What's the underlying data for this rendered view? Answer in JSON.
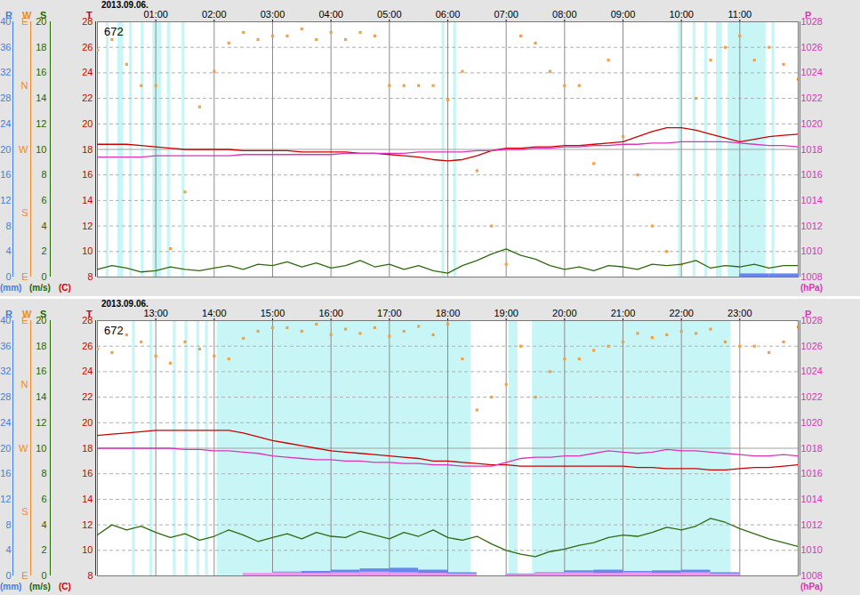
{
  "chart_data": [
    {
      "type": "line",
      "title": "2013.09.06.",
      "annotation": "672",
      "grid": true,
      "xlim": [
        0,
        12
      ],
      "xticks": [
        {
          "value": 1,
          "label": "01:00"
        },
        {
          "value": 2,
          "label": "02:00"
        },
        {
          "value": 3,
          "label": "03:00"
        },
        {
          "value": 4,
          "label": "04:00"
        },
        {
          "value": 5,
          "label": "05:00"
        },
        {
          "value": 6,
          "label": "06:00"
        },
        {
          "value": 7,
          "label": "07:00"
        },
        {
          "value": 8,
          "label": "08:00"
        },
        {
          "value": 9,
          "label": "09:00"
        },
        {
          "value": 10,
          "label": "10:00"
        },
        {
          "value": 11,
          "label": "11:00"
        }
      ],
      "axes": [
        {
          "label": "R",
          "unit": "(mm)",
          "side": "left",
          "color": "#3f7fe6",
          "lim": [
            0,
            40
          ],
          "ticks": [
            0,
            4,
            8,
            12,
            16,
            20,
            24,
            28,
            32,
            36,
            40
          ]
        },
        {
          "label": "W",
          "side": "left",
          "color": "#f08a24",
          "lim": [
            0,
            360
          ],
          "ticks": [
            {
              "value": 0,
              "label": "E"
            },
            {
              "value": 90,
              "label": "S"
            },
            {
              "value": 180,
              "label": "W"
            },
            {
              "value": 270,
              "label": "N"
            },
            {
              "value": 360,
              "label": "E"
            }
          ]
        },
        {
          "label": "S",
          "unit": "(m/s)",
          "side": "left",
          "color": "#226600",
          "lim": [
            0,
            20
          ],
          "ticks": [
            0,
            2,
            4,
            6,
            8,
            10,
            12,
            14,
            16,
            18,
            20
          ]
        },
        {
          "label": "T",
          "unit": "(C)",
          "side": "left",
          "color": "#cc0000",
          "lim": [
            8,
            28
          ],
          "ticks": [
            8,
            10,
            12,
            14,
            16,
            18,
            20,
            22,
            24,
            26,
            28
          ]
        },
        {
          "label": "P",
          "unit": "(hPa)",
          "side": "right",
          "color": "#dd33bb",
          "lim": [
            1008,
            1028
          ],
          "ticks": [
            1008,
            1010,
            1012,
            1014,
            1016,
            1018,
            1020,
            1022,
            1024,
            1026,
            1028
          ]
        }
      ],
      "shading": [
        [
          0.15,
          0.2
        ],
        [
          0.35,
          0.45
        ],
        [
          0.55,
          0.6
        ],
        [
          0.75,
          0.8
        ],
        [
          0.95,
          1.1
        ],
        [
          1.2,
          1.25
        ],
        [
          1.45,
          1.5
        ],
        [
          5.9,
          5.95
        ],
        [
          6.1,
          6.15
        ],
        [
          9.95,
          10.0
        ],
        [
          10.2,
          10.25
        ],
        [
          10.4,
          10.45
        ],
        [
          10.6,
          10.7
        ],
        [
          10.8,
          11.45
        ],
        [
          11.55,
          11.6
        ]
      ],
      "x": [
        0,
        0.25,
        0.5,
        0.75,
        1,
        1.25,
        1.5,
        1.75,
        2,
        2.25,
        2.5,
        2.75,
        3,
        3.25,
        3.5,
        3.75,
        4,
        4.25,
        4.5,
        4.75,
        5,
        5.25,
        5.5,
        5.75,
        6,
        6.25,
        6.5,
        6.75,
        7,
        7.25,
        7.5,
        7.75,
        8,
        8.25,
        8.5,
        8.75,
        9,
        9.25,
        9.5,
        9.75,
        10,
        10.25,
        10.5,
        10.75,
        11,
        11.25,
        11.5,
        11.75,
        12
      ],
      "bins": [
        0,
        0.5,
        1,
        1.5,
        2,
        2.5,
        3,
        3.5,
        4,
        4.5,
        5,
        5.5,
        6,
        6.5,
        7,
        7.5,
        8,
        8.5,
        9,
        9.5,
        10,
        10.5,
        11,
        11.5,
        12
      ],
      "series": [
        {
          "axis": "R",
          "type": "bar",
          "color": "#6688ee",
          "values": [
            0,
            0,
            0,
            0,
            0,
            0,
            0,
            0,
            0,
            0,
            0,
            0,
            0,
            0,
            0,
            0,
            0,
            0,
            0,
            0,
            0,
            0,
            0.5,
            0.5
          ]
        },
        {
          "axis": "W",
          "type": "scatter",
          "marker": "square",
          "color": "#f5a040",
          "values": [
            320,
            335,
            300,
            270,
            270,
            40,
            120,
            240,
            290,
            330,
            345,
            335,
            340,
            340,
            350,
            335,
            345,
            335,
            345,
            340,
            270,
            270,
            270,
            270,
            250,
            290,
            150,
            72,
            18,
            340,
            330,
            290,
            270,
            270,
            160,
            306,
            198,
            144,
            72,
            36,
            18,
            252,
            306,
            324,
            340,
            306,
            324,
            300,
            279
          ]
        },
        {
          "axis": "S",
          "type": "line",
          "color": "#2e6b10",
          "values": [
            0.6,
            0.9,
            0.7,
            0.4,
            0.5,
            0.8,
            0.6,
            0.5,
            0.7,
            0.9,
            0.6,
            1.0,
            0.9,
            1.2,
            0.8,
            1.1,
            0.7,
            0.9,
            1.3,
            0.8,
            1.0,
            0.6,
            0.9,
            0.5,
            0.3,
            0.9,
            1.3,
            1.8,
            2.2,
            1.7,
            1.4,
            0.9,
            0.6,
            0.8,
            0.5,
            0.9,
            0.8,
            0.6,
            1.0,
            0.9,
            1.0,
            1.3,
            0.7,
            0.9,
            0.8,
            1.0,
            0.7,
            0.9,
            0.9
          ]
        },
        {
          "axis": "T",
          "type": "line",
          "color": "#cc0000",
          "values": [
            18.4,
            18.4,
            18.4,
            18.3,
            18.2,
            18.1,
            18.0,
            18.0,
            18.0,
            18.0,
            17.9,
            17.9,
            17.9,
            17.9,
            17.8,
            17.8,
            17.8,
            17.8,
            17.7,
            17.7,
            17.6,
            17.5,
            17.4,
            17.2,
            17.1,
            17.2,
            17.5,
            17.9,
            18.1,
            18.1,
            18.2,
            18.2,
            18.3,
            18.3,
            18.4,
            18.5,
            18.6,
            19.0,
            19.4,
            19.7,
            19.7,
            19.5,
            19.2,
            18.9,
            18.6,
            18.8,
            19.0,
            19.1,
            19.2
          ]
        },
        {
          "axis": "P",
          "type": "line",
          "color": "#dd33bb",
          "values": [
            1017.4,
            1017.4,
            1017.4,
            1017.4,
            1017.5,
            1017.5,
            1017.5,
            1017.5,
            1017.5,
            1017.5,
            1017.6,
            1017.6,
            1017.6,
            1017.6,
            1017.6,
            1017.6,
            1017.6,
            1017.7,
            1017.7,
            1017.7,
            1017.7,
            1017.7,
            1017.8,
            1017.8,
            1017.8,
            1017.8,
            1017.9,
            1017.9,
            1018.0,
            1018.0,
            1018.1,
            1018.1,
            1018.2,
            1018.2,
            1018.3,
            1018.3,
            1018.4,
            1018.4,
            1018.5,
            1018.5,
            1018.6,
            1018.6,
            1018.6,
            1018.6,
            1018.5,
            1018.4,
            1018.3,
            1018.3,
            1018.2
          ]
        }
      ]
    },
    {
      "type": "line",
      "title": "2013.09.06.",
      "annotation": "672",
      "grid": true,
      "xlim": [
        12,
        24
      ],
      "xticks": [
        {
          "value": 13,
          "label": "13:00"
        },
        {
          "value": 14,
          "label": "14:00"
        },
        {
          "value": 15,
          "label": "15:00"
        },
        {
          "value": 16,
          "label": "16:00"
        },
        {
          "value": 17,
          "label": "17:00"
        },
        {
          "value": 18,
          "label": "18:00"
        },
        {
          "value": 19,
          "label": "19:00"
        },
        {
          "value": 20,
          "label": "20:00"
        },
        {
          "value": 21,
          "label": "21:00"
        },
        {
          "value": 22,
          "label": "22:00"
        },
        {
          "value": 23,
          "label": "23:00"
        }
      ],
      "axes": [
        {
          "label": "R",
          "unit": "(mm)",
          "side": "left",
          "color": "#3f7fe6",
          "lim": [
            0,
            40
          ],
          "ticks": [
            0,
            4,
            8,
            12,
            16,
            20,
            24,
            28,
            32,
            36,
            40
          ]
        },
        {
          "label": "W",
          "side": "left",
          "color": "#f08a24",
          "lim": [
            0,
            360
          ],
          "ticks": [
            {
              "value": 0,
              "label": "E"
            },
            {
              "value": 90,
              "label": "S"
            },
            {
              "value": 180,
              "label": "W"
            },
            {
              "value": 270,
              "label": "N"
            },
            {
              "value": 360,
              "label": "E"
            }
          ]
        },
        {
          "label": "S",
          "unit": "(m/s)",
          "side": "left",
          "color": "#226600",
          "lim": [
            0,
            20
          ],
          "ticks": [
            0,
            2,
            4,
            6,
            8,
            10,
            12,
            14,
            16,
            18,
            20
          ]
        },
        {
          "label": "T",
          "unit": "(C)",
          "side": "left",
          "color": "#cc0000",
          "lim": [
            8,
            28
          ],
          "ticks": [
            8,
            10,
            12,
            14,
            16,
            18,
            20,
            22,
            24,
            26,
            28
          ]
        },
        {
          "label": "P",
          "unit": "(hPa)",
          "side": "right",
          "color": "#dd33bb",
          "lim": [
            1008,
            1028
          ],
          "ticks": [
            1008,
            1010,
            1012,
            1014,
            1016,
            1018,
            1020,
            1022,
            1024,
            1026,
            1028
          ]
        }
      ],
      "shading": [
        [
          12.6,
          12.65
        ],
        [
          12.9,
          12.95
        ],
        [
          13.3,
          13.35
        ],
        [
          13.5,
          13.55
        ],
        [
          13.7,
          13.75
        ],
        [
          13.85,
          13.9
        ],
        [
          14.05,
          18.4
        ],
        [
          19.05,
          19.2
        ],
        [
          19.45,
          22.85
        ]
      ],
      "x": [
        12,
        12.25,
        12.5,
        12.75,
        13,
        13.25,
        13.5,
        13.75,
        14,
        14.25,
        14.5,
        14.75,
        15,
        15.25,
        15.5,
        15.75,
        16,
        16.25,
        16.5,
        16.75,
        17,
        17.25,
        17.5,
        17.75,
        18,
        18.25,
        18.5,
        18.75,
        19,
        19.25,
        19.5,
        19.75,
        20,
        20.25,
        20.5,
        20.75,
        21,
        21.25,
        21.5,
        21.75,
        22,
        22.25,
        22.5,
        22.75,
        23,
        23.25,
        23.5,
        23.75,
        24
      ],
      "bins": [
        12,
        12.5,
        13,
        13.5,
        14,
        14.5,
        15,
        15.5,
        16,
        16.5,
        17,
        17.5,
        18,
        18.5,
        19,
        19.5,
        20,
        20.5,
        21,
        21.5,
        22,
        22.5,
        23,
        23.5,
        24
      ],
      "series": [
        {
          "axis": "R",
          "type": "bar",
          "color": "#6688ee",
          "values": [
            0,
            0,
            0,
            0,
            0,
            0.3,
            0.6,
            0.7,
            0.9,
            1.1,
            1.2,
            0.9,
            0.5,
            0,
            0.3,
            0.5,
            0.8,
            0.9,
            0.7,
            0.8,
            0.9,
            0.5,
            0,
            0
          ]
        },
        {
          "axis": "R",
          "type": "bar",
          "color": "#ee99ee",
          "values": [
            0,
            0,
            0,
            0,
            0,
            0.4,
            0.5,
            0.4,
            0.5,
            0.6,
            0.5,
            0.4,
            0.3,
            0,
            0.2,
            0.4,
            0.5,
            0.4,
            0.5,
            0.4,
            0.5,
            0.3,
            0,
            0
          ]
        },
        {
          "axis": "W",
          "type": "scatter",
          "marker": "square",
          "color": "#f5a040",
          "values": [
            320,
            315,
            340,
            330,
            310,
            300,
            330,
            320,
            310,
            306,
            335,
            345,
            350,
            350,
            345,
            355,
            340,
            348,
            342,
            350,
            338,
            345,
            352,
            340,
            355,
            306,
            234,
            252,
            270,
            324,
            252,
            288,
            306,
            306,
            318,
            324,
            330,
            342,
            336,
            340,
            345,
            342,
            348,
            330,
            324,
            324,
            315,
            330,
            351
          ]
        },
        {
          "axis": "S",
          "type": "line",
          "color": "#2e6b10",
          "values": [
            3.2,
            4.0,
            3.6,
            3.9,
            3.4,
            3.0,
            3.3,
            2.8,
            3.1,
            3.6,
            3.2,
            2.7,
            3.0,
            3.3,
            2.9,
            3.4,
            3.1,
            3.0,
            3.5,
            3.2,
            2.9,
            3.4,
            3.1,
            3.6,
            3.0,
            2.8,
            3.1,
            2.5,
            2.0,
            1.7,
            1.5,
            1.9,
            2.1,
            2.4,
            2.6,
            3.0,
            3.2,
            3.1,
            3.4,
            3.8,
            3.6,
            3.9,
            4.5,
            4.2,
            3.7,
            3.3,
            2.9,
            2.6,
            2.3
          ]
        },
        {
          "axis": "T",
          "type": "line",
          "color": "#cc0000",
          "values": [
            19.0,
            19.1,
            19.2,
            19.3,
            19.4,
            19.4,
            19.4,
            19.4,
            19.4,
            19.4,
            19.2,
            18.9,
            18.6,
            18.4,
            18.2,
            18.0,
            17.8,
            17.7,
            17.6,
            17.5,
            17.4,
            17.3,
            17.2,
            17.0,
            17.0,
            16.9,
            16.8,
            16.7,
            16.7,
            16.6,
            16.6,
            16.6,
            16.6,
            16.6,
            16.6,
            16.6,
            16.6,
            16.5,
            16.5,
            16.4,
            16.4,
            16.4,
            16.3,
            16.3,
            16.4,
            16.5,
            16.5,
            16.6,
            16.7
          ]
        },
        {
          "axis": "P",
          "type": "line",
          "color": "#dd33bb",
          "values": [
            1018.0,
            1018.0,
            1018.0,
            1018.0,
            1018.0,
            1018.0,
            1017.9,
            1017.9,
            1017.8,
            1017.8,
            1017.7,
            1017.6,
            1017.4,
            1017.3,
            1017.2,
            1017.1,
            1017.1,
            1017.0,
            1017.0,
            1016.9,
            1016.9,
            1016.8,
            1016.8,
            1016.7,
            1016.7,
            1016.6,
            1016.6,
            1016.6,
            1016.9,
            1017.2,
            1017.3,
            1017.3,
            1017.4,
            1017.4,
            1017.6,
            1017.8,
            1017.7,
            1017.6,
            1017.7,
            1017.9,
            1017.8,
            1017.8,
            1017.7,
            1017.6,
            1017.5,
            1017.4,
            1017.4,
            1017.5,
            1017.4
          ]
        }
      ]
    }
  ]
}
